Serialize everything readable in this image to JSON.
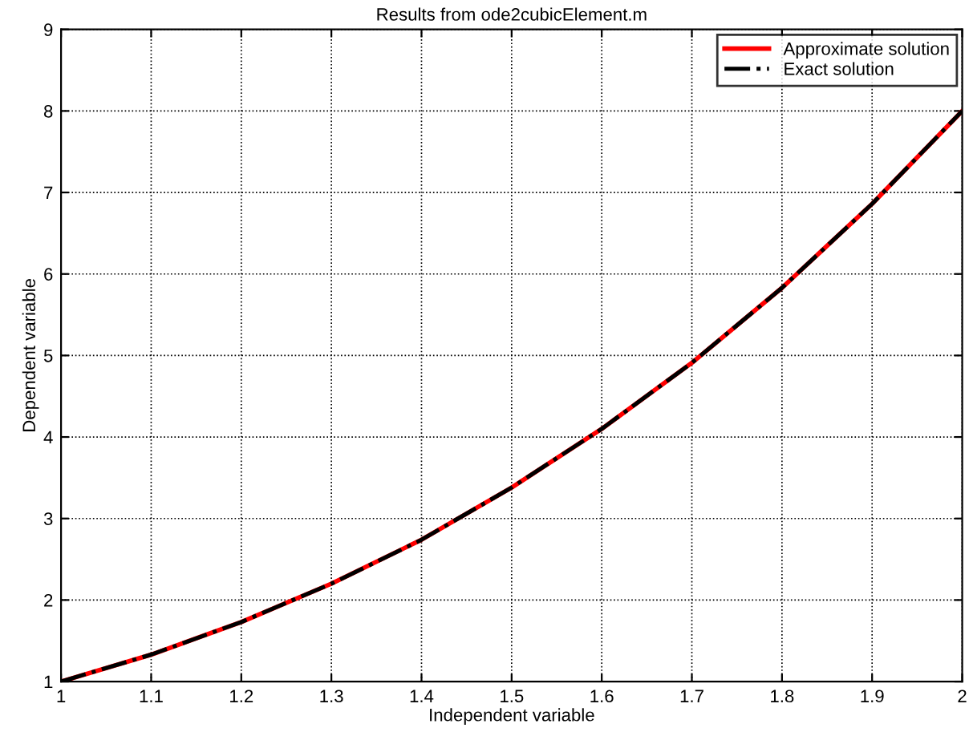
{
  "chart_data": {
    "type": "line",
    "title": "Results from ode2cubicElement.m",
    "xlabel": "Independent variable",
    "ylabel": "Dependent variable",
    "x": [
      1,
      1.1,
      1.2,
      1.3,
      1.4,
      1.5,
      1.6,
      1.7,
      1.8,
      1.9,
      2
    ],
    "series": [
      {
        "name": "Approximate solution",
        "color": "#ff0000",
        "line_style": "solid",
        "values": [
          1,
          1.33,
          1.73,
          2.2,
          2.74,
          3.38,
          4.1,
          4.91,
          5.83,
          6.86,
          8
        ]
      },
      {
        "name": "Exact solution",
        "color": "#000000",
        "line_style": "dashed",
        "values": [
          1,
          1.33,
          1.73,
          2.2,
          2.74,
          3.38,
          4.1,
          4.91,
          5.83,
          6.86,
          8
        ]
      }
    ],
    "xlim": [
      1,
      2
    ],
    "ylim": [
      1,
      9
    ],
    "xticks": [
      1,
      1.1,
      1.2,
      1.3,
      1.4,
      1.5,
      1.6,
      1.7,
      1.8,
      1.9,
      2
    ],
    "yticks": [
      1,
      2,
      3,
      4,
      5,
      6,
      7,
      8,
      9
    ],
    "grid": true,
    "legend": "top right",
    "marker": "none"
  }
}
